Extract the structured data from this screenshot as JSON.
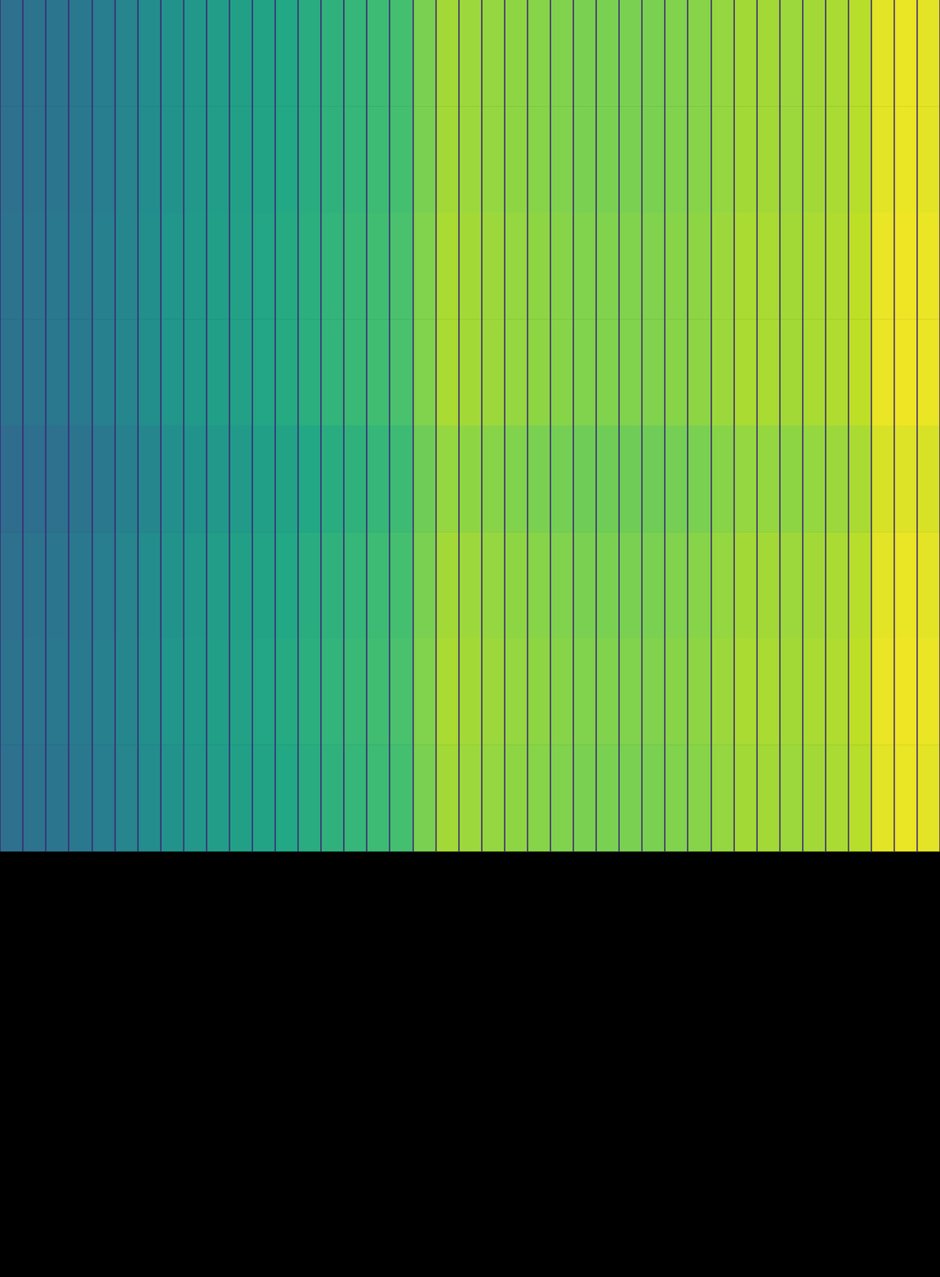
{
  "chart_data": {
    "type": "heatmap",
    "color": "viridis",
    "tick_labels": false,
    "clim": [
      0,
      1
    ],
    "values": [
      [
        0.37,
        0.38,
        0.39,
        0.4,
        0.42,
        0.45,
        0.48,
        0.51,
        0.53,
        0.55,
        0.56,
        0.58,
        0.6,
        0.62,
        0.64,
        0.66,
        0.68,
        0.7,
        0.8,
        0.86,
        0.85,
        0.84,
        0.83,
        0.82,
        0.81,
        0.8,
        0.8,
        0.8,
        0.8,
        0.81,
        0.82,
        0.84,
        0.86,
        0.86,
        0.85,
        0.86,
        0.87,
        0.89,
        0.96,
        0.97,
        0.96
      ],
      [
        0.37,
        0.38,
        0.39,
        0.4,
        0.42,
        0.45,
        0.48,
        0.51,
        0.53,
        0.55,
        0.56,
        0.58,
        0.6,
        0.62,
        0.64,
        0.66,
        0.68,
        0.7,
        0.8,
        0.86,
        0.85,
        0.84,
        0.83,
        0.82,
        0.81,
        0.8,
        0.8,
        0.8,
        0.8,
        0.81,
        0.82,
        0.84,
        0.86,
        0.86,
        0.85,
        0.86,
        0.87,
        0.89,
        0.96,
        0.97,
        0.96
      ],
      [
        0.38,
        0.39,
        0.4,
        0.41,
        0.43,
        0.46,
        0.49,
        0.52,
        0.54,
        0.56,
        0.57,
        0.59,
        0.61,
        0.63,
        0.65,
        0.67,
        0.69,
        0.71,
        0.81,
        0.87,
        0.86,
        0.85,
        0.84,
        0.83,
        0.82,
        0.81,
        0.81,
        0.81,
        0.81,
        0.82,
        0.83,
        0.85,
        0.87,
        0.87,
        0.86,
        0.87,
        0.88,
        0.9,
        0.97,
        0.98,
        0.97
      ],
      [
        0.38,
        0.39,
        0.4,
        0.41,
        0.43,
        0.46,
        0.49,
        0.52,
        0.54,
        0.56,
        0.57,
        0.59,
        0.61,
        0.63,
        0.65,
        0.67,
        0.69,
        0.71,
        0.81,
        0.87,
        0.86,
        0.85,
        0.84,
        0.83,
        0.82,
        0.81,
        0.81,
        0.81,
        0.81,
        0.82,
        0.83,
        0.85,
        0.87,
        0.87,
        0.86,
        0.87,
        0.88,
        0.9,
        0.97,
        0.98,
        0.97
      ],
      [
        0.35,
        0.36,
        0.37,
        0.38,
        0.4,
        0.43,
        0.46,
        0.49,
        0.51,
        0.53,
        0.54,
        0.56,
        0.58,
        0.6,
        0.62,
        0.64,
        0.66,
        0.68,
        0.78,
        0.84,
        0.83,
        0.82,
        0.81,
        0.8,
        0.79,
        0.78,
        0.78,
        0.78,
        0.78,
        0.79,
        0.8,
        0.82,
        0.84,
        0.84,
        0.83,
        0.84,
        0.85,
        0.87,
        0.94,
        0.95,
        0.94
      ],
      [
        0.37,
        0.38,
        0.39,
        0.4,
        0.42,
        0.45,
        0.48,
        0.51,
        0.53,
        0.55,
        0.56,
        0.58,
        0.6,
        0.62,
        0.64,
        0.66,
        0.68,
        0.7,
        0.8,
        0.86,
        0.85,
        0.84,
        0.83,
        0.82,
        0.81,
        0.8,
        0.8,
        0.8,
        0.8,
        0.81,
        0.82,
        0.84,
        0.86,
        0.86,
        0.85,
        0.86,
        0.87,
        0.89,
        0.96,
        0.97,
        0.96
      ],
      [
        0.38,
        0.39,
        0.4,
        0.41,
        0.43,
        0.46,
        0.49,
        0.52,
        0.54,
        0.56,
        0.57,
        0.59,
        0.61,
        0.63,
        0.65,
        0.67,
        0.69,
        0.71,
        0.81,
        0.87,
        0.86,
        0.85,
        0.84,
        0.83,
        0.82,
        0.81,
        0.81,
        0.81,
        0.81,
        0.82,
        0.83,
        0.85,
        0.87,
        0.87,
        0.86,
        0.87,
        0.88,
        0.9,
        0.97,
        0.98,
        0.97
      ],
      [
        0.37,
        0.38,
        0.39,
        0.4,
        0.42,
        0.45,
        0.48,
        0.51,
        0.53,
        0.55,
        0.56,
        0.58,
        0.6,
        0.62,
        0.64,
        0.66,
        0.68,
        0.7,
        0.8,
        0.86,
        0.85,
        0.84,
        0.83,
        0.82,
        0.81,
        0.8,
        0.8,
        0.8,
        0.8,
        0.81,
        0.82,
        0.84,
        0.86,
        0.86,
        0.85,
        0.86,
        0.87,
        0.89,
        0.96,
        0.97,
        0.96
      ]
    ]
  }
}
